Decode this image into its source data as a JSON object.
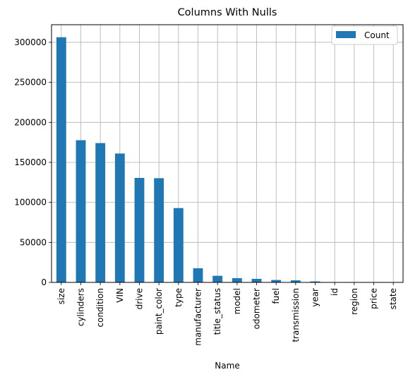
{
  "chart_data": {
    "type": "bar",
    "title": "Columns With Nulls",
    "xlabel": "Name",
    "ylabel": "",
    "ylim": [
      0,
      322000
    ],
    "yticks": [
      0,
      50000,
      100000,
      150000,
      200000,
      250000,
      300000
    ],
    "grid": true,
    "legend_position": "top-right",
    "categories": [
      "size",
      "cylinders",
      "condition",
      "VIN",
      "drive",
      "paint_color",
      "type",
      "manufacturer",
      "title_status",
      "model",
      "odometer",
      "fuel",
      "transmission",
      "year",
      "id",
      "region",
      "price",
      "state"
    ],
    "series": [
      {
        "name": "Count",
        "color": "#1f77b4",
        "values": [
          306361,
          177678,
          174104,
          161042,
          130567,
          130203,
          92858,
          17646,
          8242,
          5277,
          4400,
          3013,
          2556,
          1205,
          0,
          0,
          0,
          0
        ]
      }
    ]
  }
}
